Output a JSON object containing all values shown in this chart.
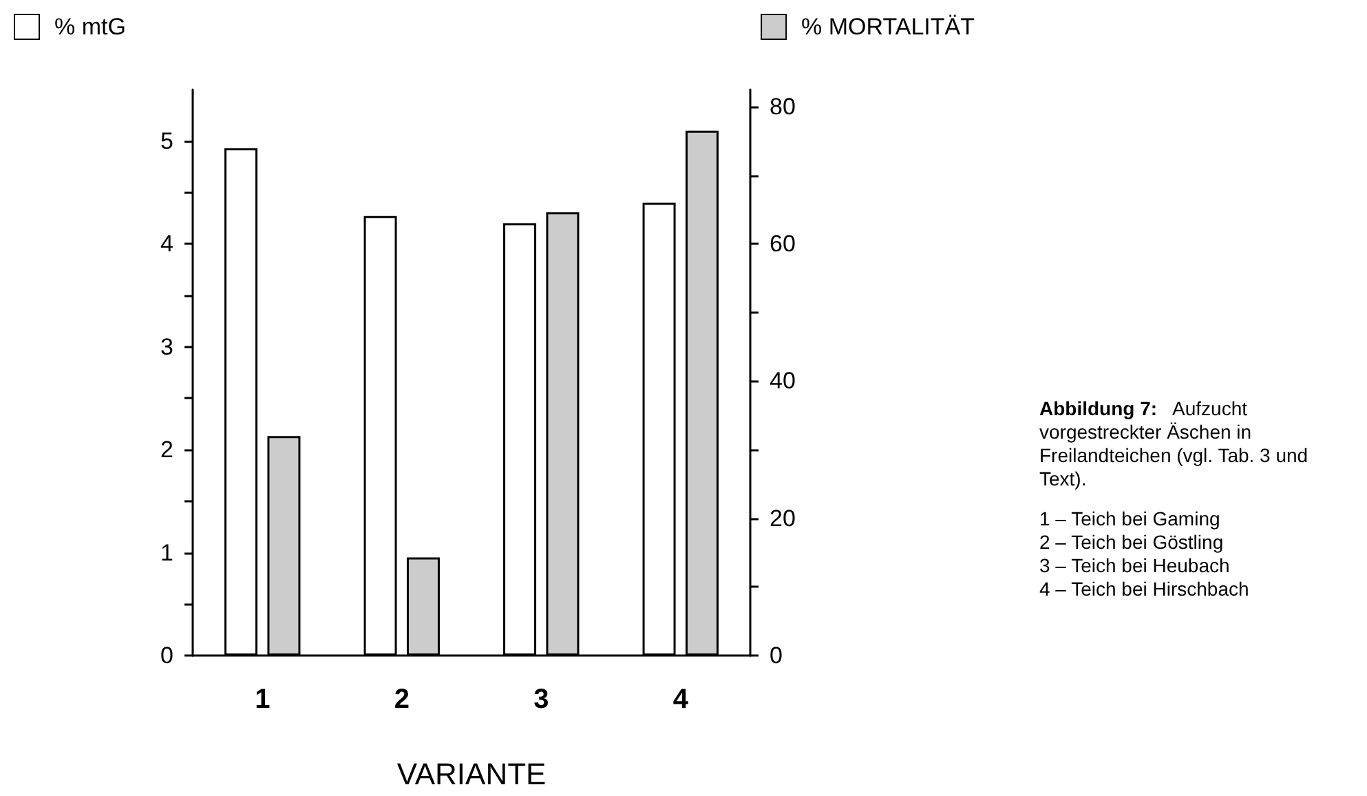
{
  "chart_data": {
    "type": "bar",
    "categories": [
      "1",
      "2",
      "3",
      "4"
    ],
    "xlabel": "VARIANTE",
    "series": [
      {
        "name": "% mtG",
        "color": "#ffffff",
        "values": [
          4.93,
          4.27,
          4.2,
          4.4
        ]
      },
      {
        "name": "% MORTALITÄT",
        "color": "#cccccc",
        "axis": "y2",
        "values": [
          32,
          14.3,
          64.6,
          76.5
        ]
      }
    ],
    "ylim": [
      0,
      5.5
    ],
    "yticks": [
      0,
      {
        "value": 0.5,
        "label": null
      },
      1,
      {
        "value": 1.5,
        "label": null
      },
      2,
      {
        "value": 2.5,
        "label": null
      },
      3,
      {
        "value": 3.5,
        "label": null
      },
      4,
      {
        "value": 4.5,
        "label": null
      },
      5
    ],
    "y2lim": [
      0,
      82.5
    ],
    "y2ticks": [
      0,
      {
        "value": 10,
        "label": null
      },
      20,
      {
        "value": 30,
        "label": null
      },
      40,
      {
        "value": 50,
        "label": null
      },
      60,
      {
        "value": 70,
        "label": null
      },
      80
    ],
    "legend": "top",
    "grid": false,
    "annotations": [
      "Abbildung 7: Aufzucht vorgestreckter Äschen in Freilandteichen (vgl. Tab. 3 und Text).",
      "1 – Teich bei Gaming",
      "2 – Teich bei Göstling",
      "3 – Teich bei Heubach",
      "4 – Teich bei Hirschbach"
    ]
  }
}
